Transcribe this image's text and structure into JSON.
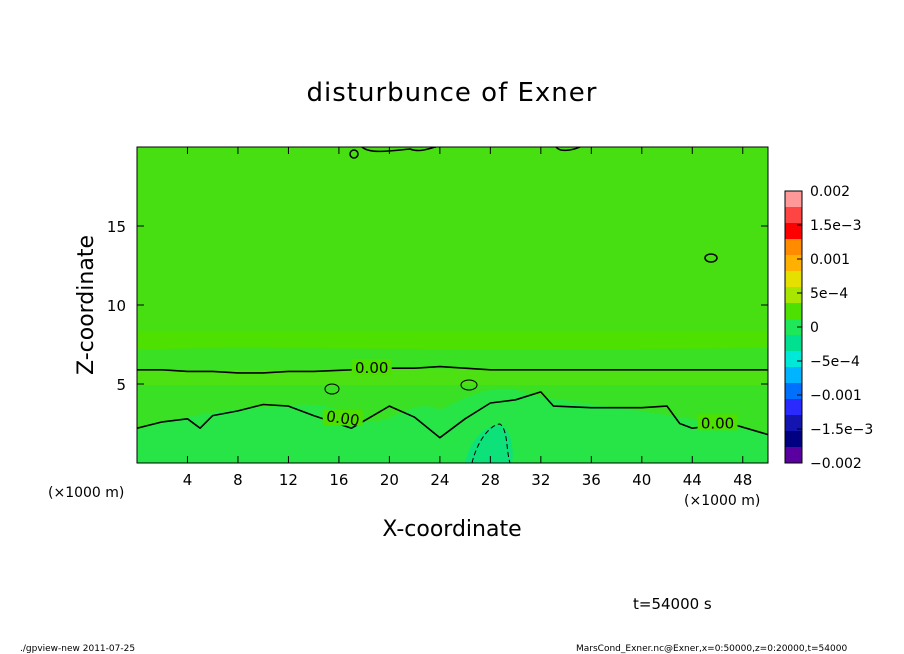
{
  "chart_data": {
    "type": "heatmap",
    "title": "disturbunce of Exner",
    "xlabel": "X-coordinate",
    "ylabel": "Z-coordinate",
    "x_unit_left": "(×1000 m)",
    "x_unit_right": "(×1000 m)",
    "xlim": [
      0,
      50
    ],
    "ylim": [
      0,
      20
    ],
    "x_ticks": [
      4,
      8,
      12,
      16,
      20,
      24,
      28,
      32,
      36,
      40,
      44,
      48
    ],
    "y_ticks": [
      5,
      10,
      15
    ],
    "colorbar": {
      "min": -0.002,
      "max": 0.002,
      "labels": [
        "0.002",
        "1.5e−3",
        "0.001",
        "5e−4",
        "0",
        "−5e−4",
        "−0.001",
        "−1.5e−3",
        "−0.002"
      ],
      "colors": [
        "#ff9999",
        "#ff4444",
        "#ff0000",
        "#ff8c00",
        "#ffb000",
        "#e5e000",
        "#a8e600",
        "#4de000",
        "#1ee85a",
        "#00e090",
        "#00e8d8",
        "#00b4ff",
        "#0070ff",
        "#2a2aff",
        "#1414b0",
        "#000080",
        "#5a00a0"
      ]
    },
    "contours": [
      {
        "label": "0.00",
        "z": [
          5.9,
          5.9,
          5.8,
          5.8,
          5.8,
          5.7,
          5.7,
          5.8,
          5.8,
          5.9,
          6.0,
          6.0,
          6.1,
          6.0,
          5.9,
          5.9,
          5.9,
          5.9,
          5.9,
          5.9,
          5.9,
          5.9,
          5.9,
          5.9,
          5.9,
          5.9
        ]
      },
      {
        "label": "0.00",
        "z": [
          2.2,
          2.6,
          2.8,
          2.2,
          3.0,
          3.3,
          3.7,
          3.6,
          3.0,
          2.2,
          3.6,
          2.9,
          1.6,
          2.8,
          3.8,
          4.0,
          4.5,
          3.6,
          3.5,
          3.5,
          3.5,
          3.6,
          2.5,
          2.2,
          2.5,
          1.8
        ]
      }
    ],
    "contour_x": [
      0,
      2,
      4,
      5,
      6,
      8,
      10,
      12,
      14,
      17,
      20,
      22,
      24,
      26,
      28,
      30,
      32,
      33,
      36,
      38,
      40,
      42,
      43,
      44,
      47,
      50
    ],
    "contour_label": "0.00",
    "time_label": "t=54000 s"
  },
  "footer": {
    "left": "./gpview-new  2011-07-25",
    "right": "MarsCond_Exner.nc@Exner,x=0:50000,z=0:20000,t=54000"
  }
}
